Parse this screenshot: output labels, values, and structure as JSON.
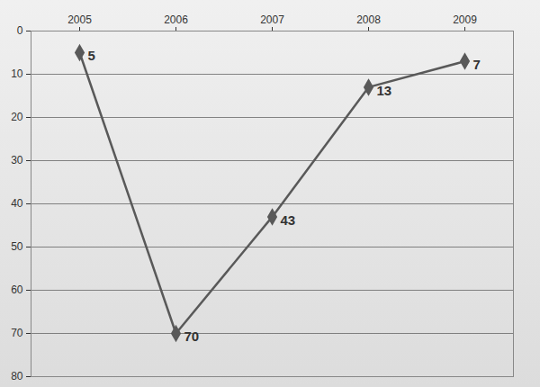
{
  "chart_data": {
    "type": "line",
    "categories": [
      "2005",
      "2006",
      "2007",
      "2008",
      "2009"
    ],
    "values": [
      5,
      70,
      43,
      13,
      7
    ],
    "color": "#595959",
    "marker": "diamond",
    "ylim": [
      80,
      0
    ],
    "yticks": [
      0,
      10,
      20,
      30,
      40,
      50,
      60,
      70,
      80
    ],
    "grid": true,
    "data_labels": true
  }
}
